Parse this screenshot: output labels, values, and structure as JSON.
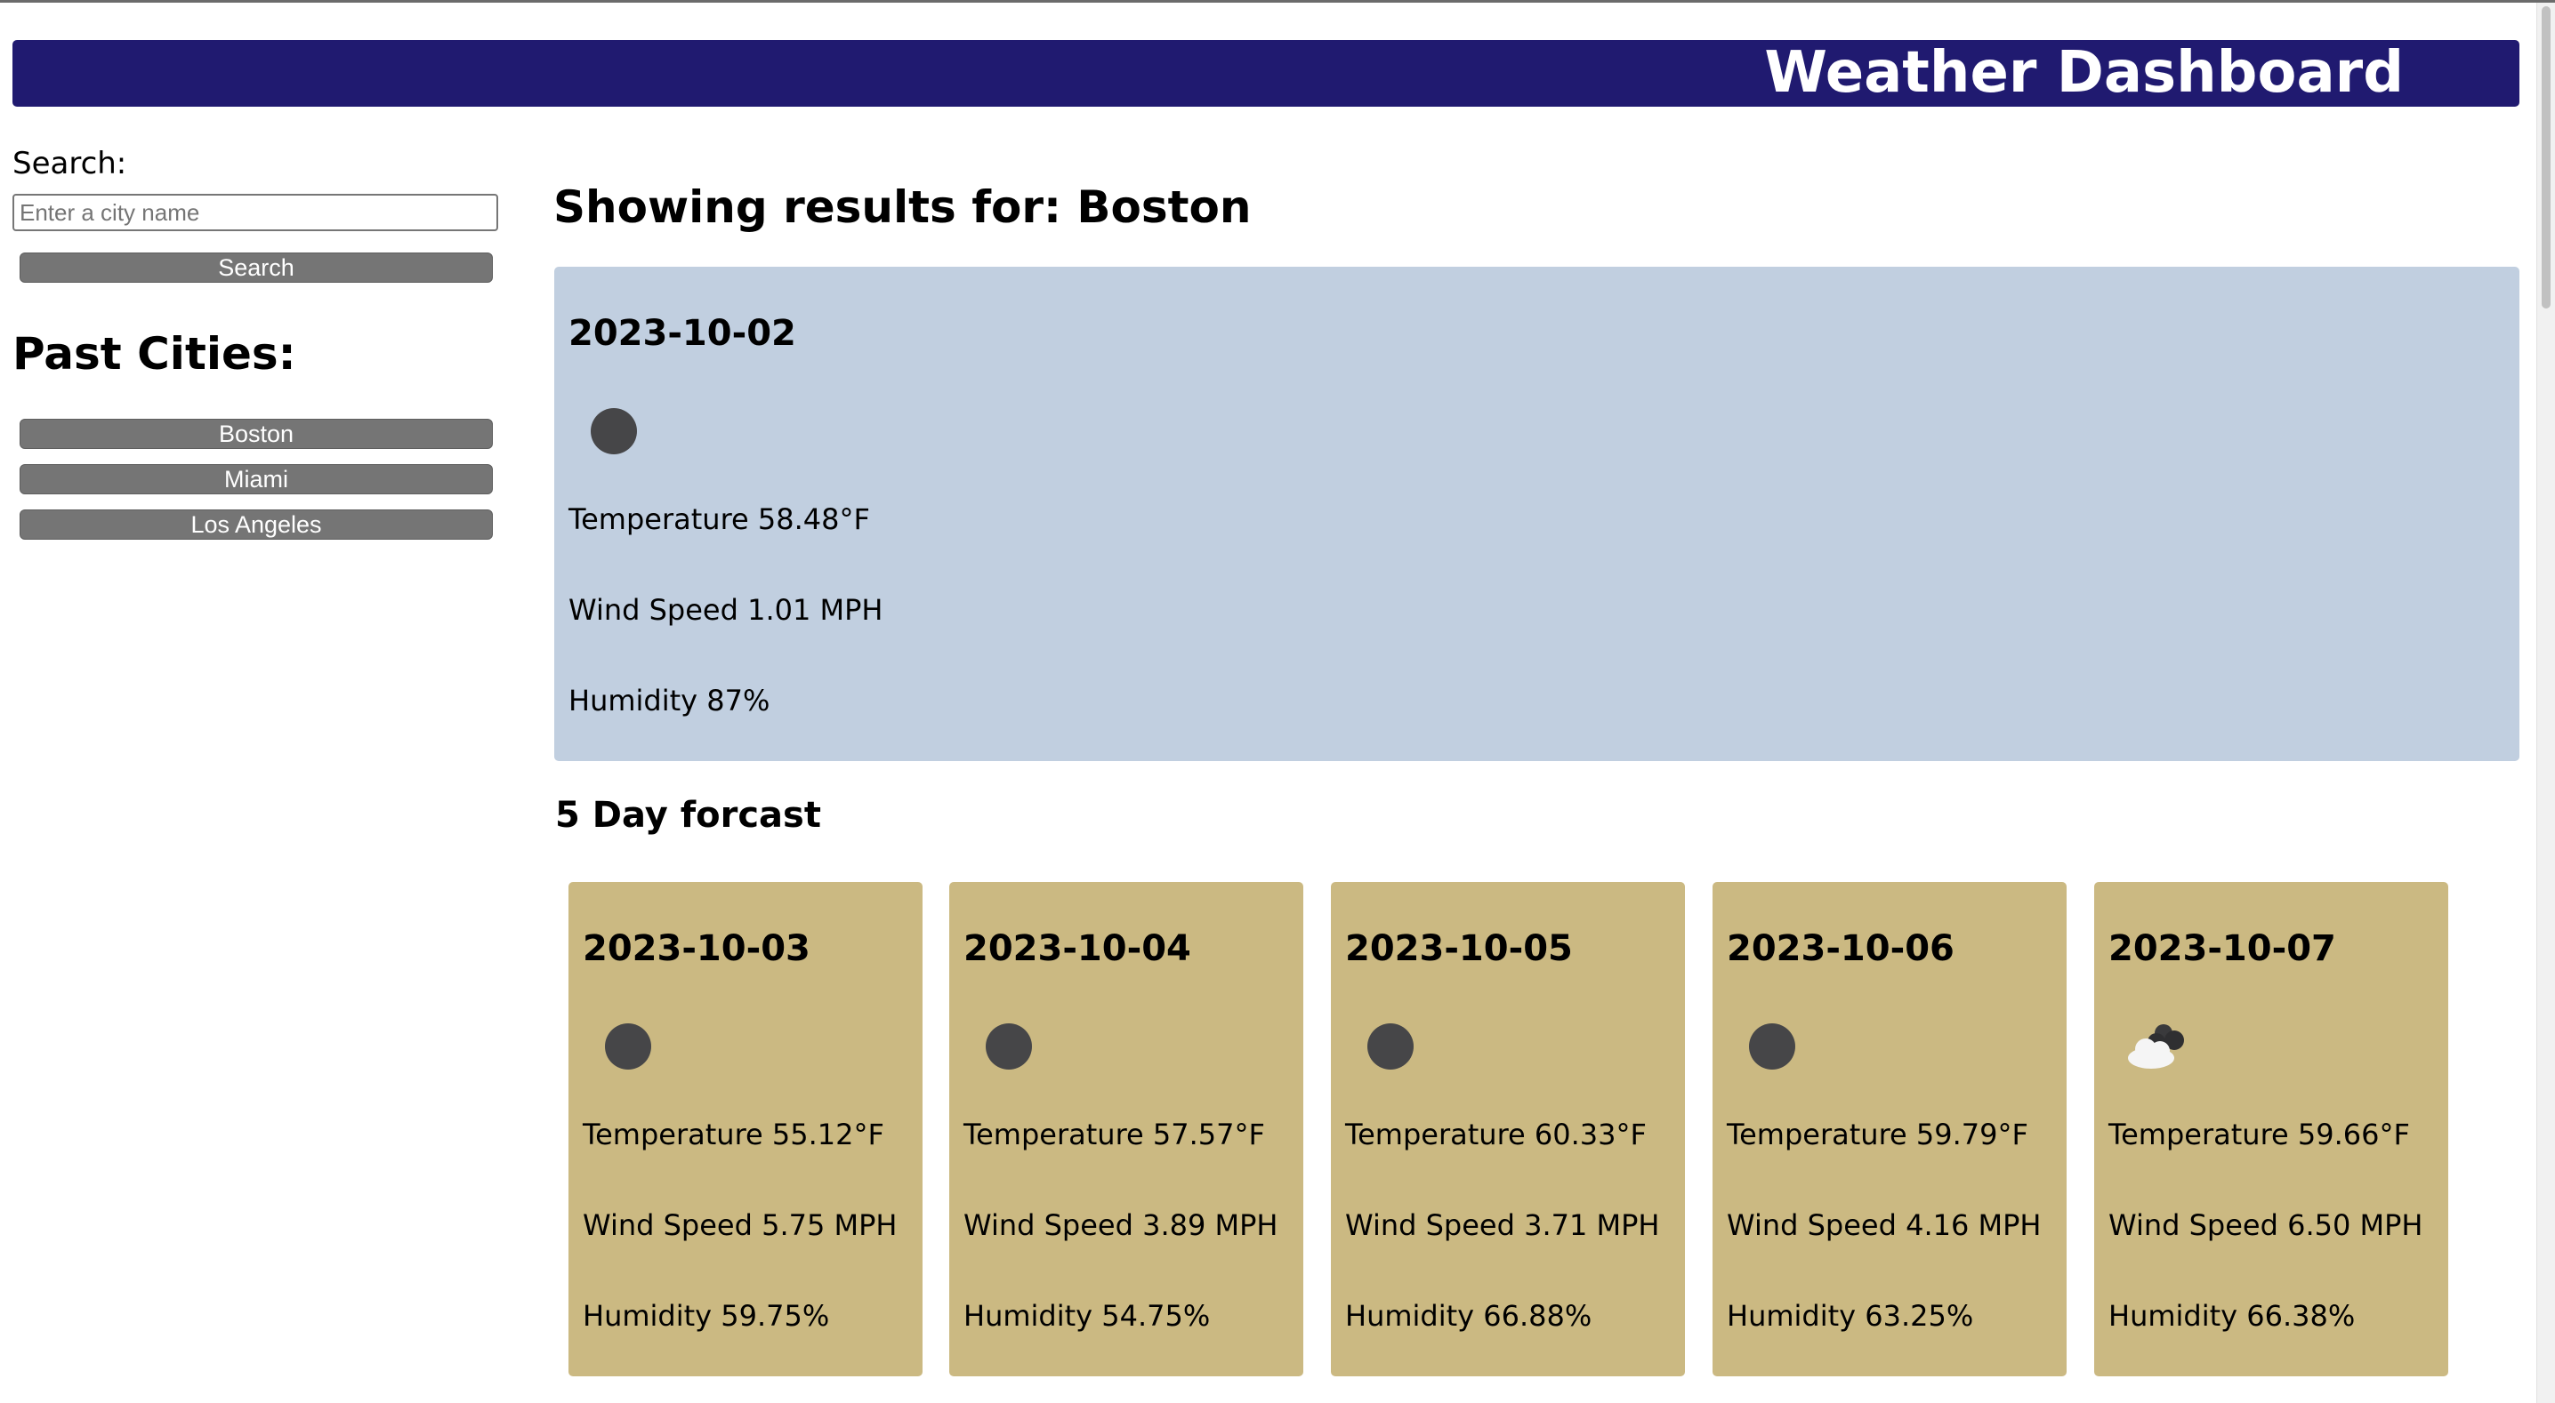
{
  "header": {
    "title": "Weather Dashboard"
  },
  "sidebar": {
    "search_label": "Search:",
    "search_placeholder": "Enter a city name",
    "search_button": "Search",
    "past_title": "Past Cities:",
    "past_cities": [
      "Boston",
      "Miami",
      "Los Angeles"
    ]
  },
  "main": {
    "results_title": "Showing results for: Boston",
    "current": {
      "date": "2023-10-02",
      "icon": "clear-night-dot-icon",
      "temperature": "Temperature 58.48°F",
      "wind": "Wind Speed 1.01 MPH",
      "humidity": "Humidity 87%"
    },
    "forecast_title": "5 Day forcast",
    "forecast": [
      {
        "date": "2023-10-03",
        "icon": "clear-night-dot-icon",
        "temperature": "Temperature 55.12°F",
        "wind": "Wind Speed 5.75 MPH",
        "humidity": "Humidity 59.75%"
      },
      {
        "date": "2023-10-04",
        "icon": "clear-night-dot-icon",
        "temperature": "Temperature 57.57°F",
        "wind": "Wind Speed 3.89 MPH",
        "humidity": "Humidity 54.75%"
      },
      {
        "date": "2023-10-05",
        "icon": "clear-night-dot-icon",
        "temperature": "Temperature 60.33°F",
        "wind": "Wind Speed 3.71 MPH",
        "humidity": "Humidity 66.88%"
      },
      {
        "date": "2023-10-06",
        "icon": "clear-night-dot-icon",
        "temperature": "Temperature 59.79°F",
        "wind": "Wind Speed 4.16 MPH",
        "humidity": "Humidity 63.25%"
      },
      {
        "date": "2023-10-07",
        "icon": "cloudy-night-icon",
        "temperature": "Temperature 59.66°F",
        "wind": "Wind Speed 6.50 MPH",
        "humidity": "Humidity 66.38%"
      }
    ]
  },
  "colors": {
    "header_bg": "#201a70",
    "current_card_bg": "#c1cfe0",
    "forecast_card_bg": "#cbb982",
    "button_bg": "#757575"
  }
}
